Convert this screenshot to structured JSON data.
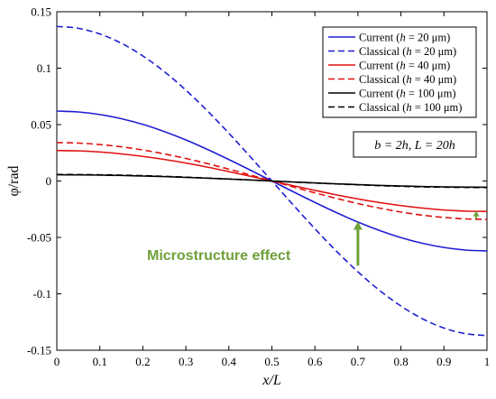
{
  "chart_data": {
    "type": "line",
    "xlabel": "x/L",
    "ylabel": "φ/rad",
    "xlim": [
      0,
      1
    ],
    "ylim": [
      -0.15,
      0.15
    ],
    "x_ticks": [
      "0",
      "0.1",
      "0.2",
      "0.3",
      "0.4",
      "0.5",
      "0.6",
      "0.7",
      "0.8",
      "0.9",
      "1"
    ],
    "y_ticks": [
      "0.15",
      "0.1",
      "0.05",
      "0",
      "-0.05",
      "-0.1",
      "-0.15"
    ],
    "grid": false,
    "legend_position": "top-right",
    "x": [
      0,
      0.05,
      0.1,
      0.15,
      0.2,
      0.25,
      0.3,
      0.35,
      0.4,
      0.45,
      0.5,
      0.55,
      0.6,
      0.65,
      0.7,
      0.75,
      0.8,
      0.85,
      0.9,
      0.95,
      1
    ],
    "series": [
      {
        "name": "Current (h = 20 μm)",
        "color": "#1f1fd1",
        "dash": "solid",
        "values": [
          0.062,
          0.0612,
          0.0589,
          0.0552,
          0.0502,
          0.0438,
          0.0364,
          0.028,
          0.019,
          0.0096,
          0,
          -0.0096,
          -0.019,
          -0.028,
          -0.0364,
          -0.0438,
          -0.0502,
          -0.0552,
          -0.0589,
          -0.0612,
          -0.062
        ]
      },
      {
        "name": "Classical (h = 20 μm)",
        "color": "#1f1fd1",
        "dash": "dashed",
        "values": [
          0.137,
          0.1353,
          0.1303,
          0.1221,
          0.1108,
          0.0969,
          0.0805,
          0.0622,
          0.0423,
          0.0214,
          0,
          -0.0214,
          -0.0423,
          -0.0622,
          -0.0805,
          -0.0969,
          -0.1108,
          -0.1221,
          -0.1303,
          -0.1353,
          -0.137
        ]
      },
      {
        "name": "Current (h = 40 μm)",
        "color": "#e01010",
        "dash": "solid",
        "values": [
          0.027,
          0.0267,
          0.0257,
          0.024,
          0.0218,
          0.0191,
          0.0159,
          0.0123,
          0.0083,
          0.0042,
          0,
          -0.0042,
          -0.0083,
          -0.0123,
          -0.0159,
          -0.0191,
          -0.0218,
          -0.024,
          -0.0257,
          -0.0267,
          -0.027
        ]
      },
      {
        "name": "Classical (h = 40 μm)",
        "color": "#e01010",
        "dash": "dashed",
        "values": [
          0.034,
          0.0336,
          0.0323,
          0.0303,
          0.0275,
          0.024,
          0.02,
          0.0154,
          0.0105,
          0.0053,
          0,
          -0.0053,
          -0.0105,
          -0.0154,
          -0.02,
          -0.024,
          -0.0275,
          -0.0303,
          -0.0323,
          -0.0336,
          -0.034
        ]
      },
      {
        "name": "Current (h = 100 μm)",
        "color": "#000000",
        "dash": "solid",
        "values": [
          0.0055,
          0.0054,
          0.0052,
          0.0049,
          0.0044,
          0.0039,
          0.0032,
          0.0025,
          0.0017,
          0.0009,
          0,
          -0.0009,
          -0.0017,
          -0.0025,
          -0.0032,
          -0.0039,
          -0.0044,
          -0.0049,
          -0.0052,
          -0.0054,
          -0.0055
        ]
      },
      {
        "name": "Classical (h = 100 μm)",
        "color": "#000000",
        "dash": "dashed",
        "values": [
          0.0058,
          0.0057,
          0.0055,
          0.0052,
          0.0047,
          0.0041,
          0.0034,
          0.0026,
          0.0018,
          0.0009,
          0,
          -0.0009,
          -0.0018,
          -0.0026,
          -0.0034,
          -0.0041,
          -0.0047,
          -0.0052,
          -0.0055,
          -0.0057,
          -0.0058
        ]
      }
    ],
    "legend_entries": [
      {
        "pre": "Current (",
        "h": "h",
        "post": " = 20 μm)"
      },
      {
        "pre": "Classical (",
        "h": "h",
        "post": " = 20 μm)"
      },
      {
        "pre": "Current (",
        "h": "h",
        "post": " = 40 μm)"
      },
      {
        "pre": "Classical (",
        "h": "h",
        "post": " = 40 μm)"
      },
      {
        "pre": "Current (",
        "h": "h",
        "post": " = 100 μm)"
      },
      {
        "pre": "Classical (",
        "h": "h",
        "post": " = 100 μm)"
      }
    ],
    "note_text": "b = 2h, L = 20h",
    "annotation": {
      "text": "Microstructure effect",
      "color": "#6fa03a",
      "arrows": [
        {
          "x": 0.7,
          "from_y": -0.075,
          "to_y": -0.036
        },
        {
          "x": 0.975,
          "from_y": -0.0335,
          "to_y": -0.0265
        }
      ]
    }
  }
}
